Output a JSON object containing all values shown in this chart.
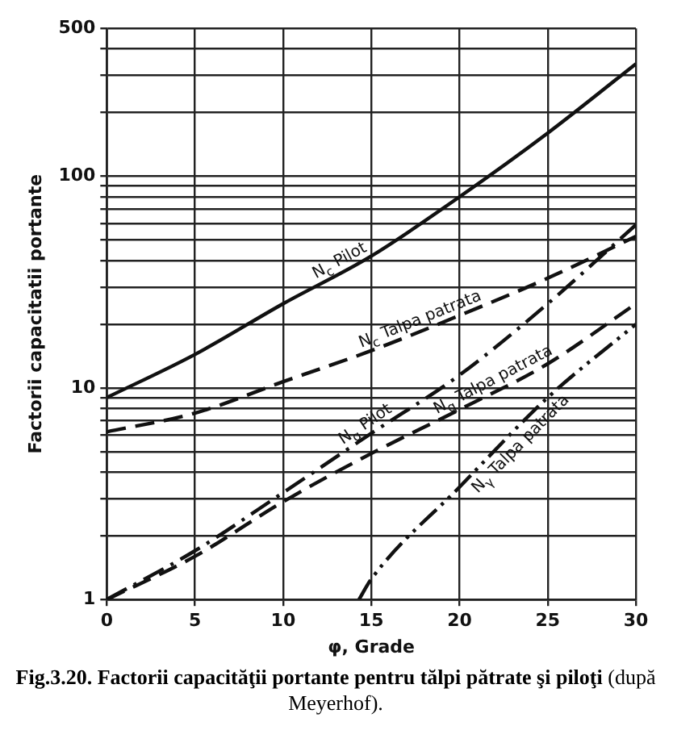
{
  "chart_data": {
    "type": "line",
    "title": "Fig.3.20. Factorii capacităţii portante pentru tălpi pătrate şi piloţi",
    "xlabel": "φ, Grade",
    "ylabel": "Factorii capacitatii portante",
    "annotations": [
      "(după Meyerhof)."
    ],
    "log": "y",
    "grid": true,
    "legend": false,
    "marker": "none",
    "xlim": [
      0,
      30
    ],
    "xticks": [
      0,
      5,
      10,
      15,
      20,
      25,
      30
    ],
    "ylim": [
      1,
      500
    ],
    "yticks": [
      1,
      {
        "value": 2,
        "label": null
      },
      {
        "value": 3,
        "label": null
      },
      {
        "value": 4,
        "label": null
      },
      {
        "value": 5,
        "label": null
      },
      {
        "value": 6,
        "label": null
      },
      {
        "value": 7,
        "label": null
      },
      {
        "value": 8,
        "label": null
      },
      {
        "value": 9,
        "label": null
      },
      10,
      {
        "value": 20,
        "label": null
      },
      {
        "value": 30,
        "label": null
      },
      {
        "value": 40,
        "label": null
      },
      {
        "value": 50,
        "label": null
      },
      {
        "value": 60,
        "label": null
      },
      {
        "value": 70,
        "label": null
      },
      {
        "value": 80,
        "label": null
      },
      {
        "value": 90,
        "label": null
      },
      100,
      {
        "value": 200,
        "label": null
      },
      {
        "value": 300,
        "label": null
      },
      {
        "value": 400,
        "label": null
      },
      500
    ],
    "series": [
      {
        "name": "N$_{c}$ Pilot",
        "color": "#111111",
        "line_style": "solid",
        "x": [
          0,
          5,
          10,
          15,
          20,
          25,
          30
        ],
        "values": [
          9,
          14.4,
          25,
          42,
          80,
          160,
          340
        ]
      },
      {
        "name": "N$_{c}$ Talpa patrata",
        "color": "#111111",
        "line_style": "dashed",
        "x": [
          0,
          5,
          10,
          15,
          20,
          25,
          30
        ],
        "values": [
          6.2,
          7.6,
          10.7,
          15,
          22,
          33,
          52
        ]
      },
      {
        "name": "N$_{q}$ Pilot",
        "color": "#111111",
        "line_style": "dashdot",
        "x": [
          0,
          5,
          10,
          15,
          20,
          25,
          30
        ],
        "values": [
          1,
          1.7,
          3.2,
          6.1,
          11.5,
          25,
          59
        ]
      },
      {
        "name": "N$_{q}$ Talpa patrata",
        "color": "#111111",
        "line_style": "dashed",
        "x": [
          0,
          5,
          10,
          15,
          20,
          25,
          30
        ],
        "values": [
          1,
          1.6,
          2.9,
          4.9,
          7.9,
          13,
          25
        ]
      },
      {
        "name": "N$_{γ}$ Talpa patrata",
        "color": "#111111",
        "line_style": "dashdotdot",
        "x": [
          14.3,
          15,
          20,
          25,
          30
        ],
        "values": [
          1,
          1.25,
          3.4,
          9,
          20
        ]
      }
    ]
  }
}
